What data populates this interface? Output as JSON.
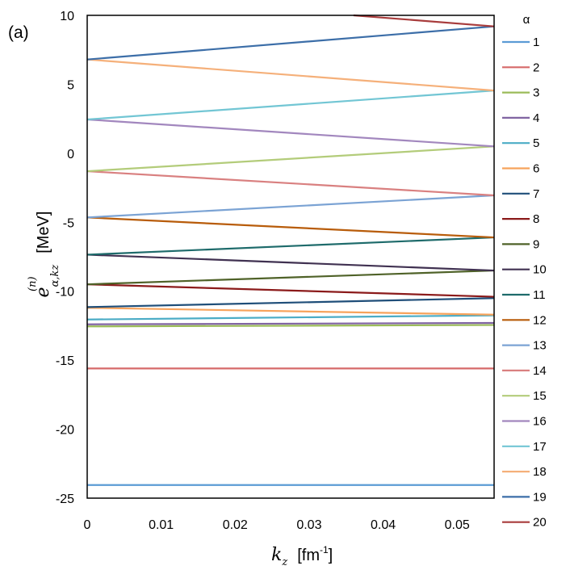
{
  "panel_label": "(a)",
  "chart_data": {
    "type": "line",
    "xlim": [
      0,
      0.055
    ],
    "ylim": [
      -25,
      10
    ],
    "x_ticks": [
      "0",
      "0.01",
      "0.02",
      "0.03",
      "0.04",
      "0.05"
    ],
    "y_ticks": [
      "10",
      "5",
      "0",
      "-5",
      "-10",
      "-15",
      "-20",
      "-25"
    ],
    "xlabel": {
      "symbol": "k",
      "sub": "z",
      "unit": "[fm",
      "unit_sup": "-1",
      "unit_end": "]"
    },
    "ylabel": {
      "symbol": "e",
      "sup": "(n)",
      "sub": "α,kz",
      "unit": "[MeV]"
    },
    "legend_title": "α",
    "grid": false,
    "legend_position": "right",
    "series": [
      {
        "name": "1",
        "color": "#5b9bd5",
        "x": [
          0,
          0.055
        ],
        "y": [
          -24.05,
          -24.05
        ]
      },
      {
        "name": "2",
        "color": "#d66969",
        "x": [
          0,
          0.055
        ],
        "y": [
          -15.6,
          -15.6
        ]
      },
      {
        "name": "3",
        "color": "#9bbb59",
        "x": [
          0,
          0.055
        ],
        "y": [
          -12.55,
          -12.45
        ]
      },
      {
        "name": "4",
        "color": "#8064a2",
        "x": [
          0,
          0.055
        ],
        "y": [
          -12.4,
          -12.3
        ]
      },
      {
        "name": "5",
        "color": "#4bacc6",
        "x": [
          0,
          0.055
        ],
        "y": [
          -12.05,
          -11.75
        ]
      },
      {
        "name": "6",
        "color": "#f7a35c",
        "x": [
          0,
          0.055
        ],
        "y": [
          -11.2,
          -11.7
        ]
      },
      {
        "name": "7",
        "color": "#1f4e79",
        "x": [
          0,
          0.055
        ],
        "y": [
          -11.15,
          -10.5
        ]
      },
      {
        "name": "8",
        "color": "#8b1a1a",
        "x": [
          0,
          0.055
        ],
        "y": [
          -9.5,
          -10.4
        ]
      },
      {
        "name": "9",
        "color": "#4f6228",
        "x": [
          0,
          0.055
        ],
        "y": [
          -9.5,
          -8.5
        ]
      },
      {
        "name": "10",
        "color": "#403151",
        "x": [
          0,
          0.055
        ],
        "y": [
          -7.35,
          -8.5
        ]
      },
      {
        "name": "11",
        "color": "#1e6b6b",
        "x": [
          0,
          0.055
        ],
        "y": [
          -7.35,
          -6.1
        ]
      },
      {
        "name": "12",
        "color": "#b85c0a",
        "x": [
          0,
          0.055
        ],
        "y": [
          -4.65,
          -6.1
        ]
      },
      {
        "name": "13",
        "color": "#7ba3d4",
        "x": [
          0,
          0.055
        ],
        "y": [
          -4.65,
          -3.05
        ]
      },
      {
        "name": "14",
        "color": "#d98080",
        "x": [
          0,
          0.055
        ],
        "y": [
          -1.3,
          -3.05
        ]
      },
      {
        "name": "15",
        "color": "#b3cc7a",
        "x": [
          0,
          0.055
        ],
        "y": [
          -1.3,
          0.5
        ]
      },
      {
        "name": "16",
        "color": "#a287be",
        "x": [
          0,
          0.055
        ],
        "y": [
          2.45,
          0.5
        ]
      },
      {
        "name": "17",
        "color": "#72c6d4",
        "x": [
          0,
          0.055
        ],
        "y": [
          2.45,
          4.55
        ]
      },
      {
        "name": "18",
        "color": "#f5b07a",
        "x": [
          0,
          0.055
        ],
        "y": [
          6.8,
          4.55
        ]
      },
      {
        "name": "19",
        "color": "#3c6ea8",
        "x": [
          0,
          0.055
        ],
        "y": [
          6.8,
          9.2
        ]
      },
      {
        "name": "20",
        "color": "#a83c3c",
        "x": [
          0.036,
          0.055
        ],
        "y": [
          10.0,
          9.2
        ]
      }
    ]
  }
}
